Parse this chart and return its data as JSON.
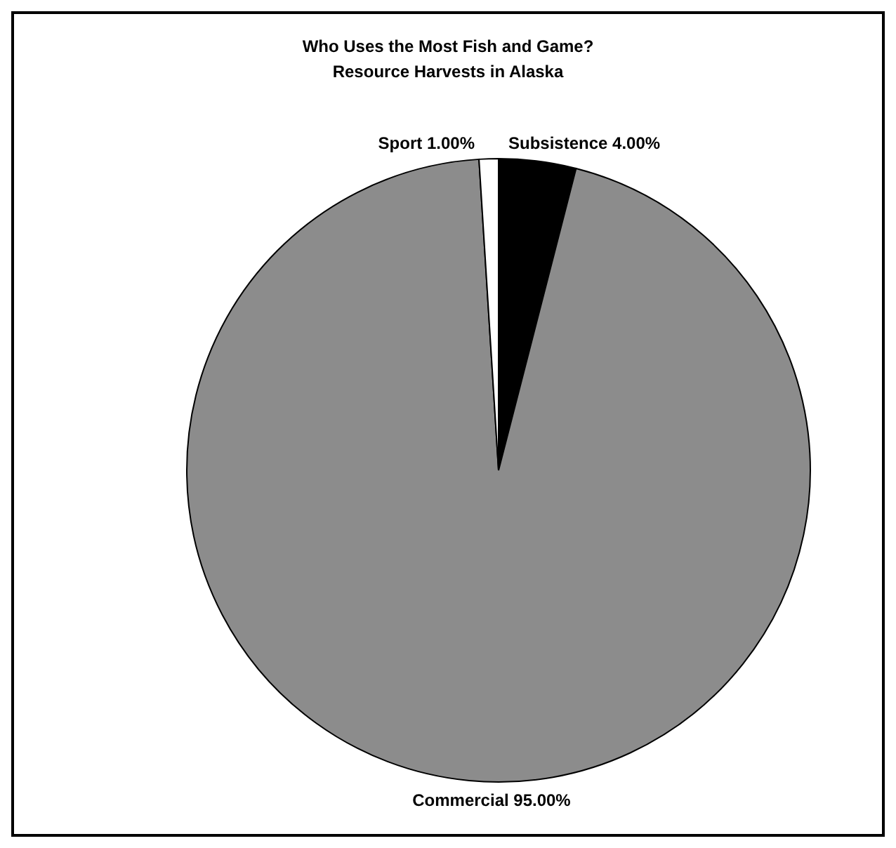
{
  "chart_data": {
    "type": "pie",
    "title": "Who Uses the Most Fish and Game?",
    "subtitle": "Resource Harvests in Alaska",
    "categories": [
      "Subsistence",
      "Commercial",
      "Sport"
    ],
    "values": [
      4,
      95,
      1
    ],
    "value_labels": [
      "4.00%",
      "95.00%",
      "1.00%"
    ],
    "colors": [
      "#000000",
      "#8c8c8c",
      "#ffffff"
    ]
  }
}
